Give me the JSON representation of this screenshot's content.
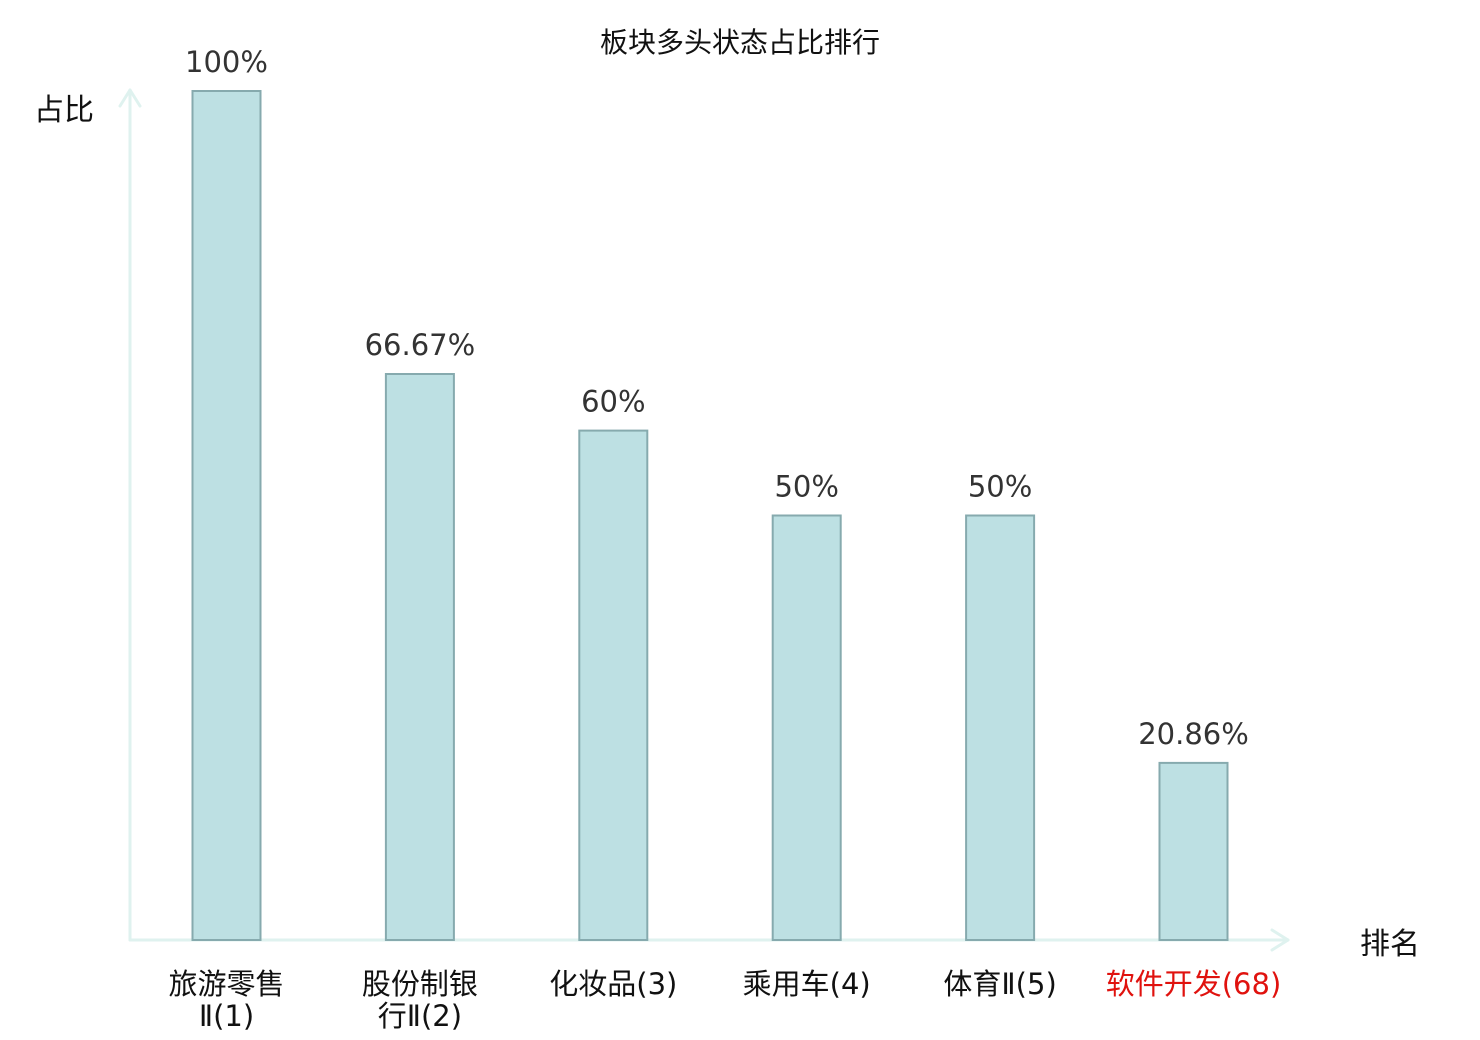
{
  "chart_data": {
    "type": "bar",
    "title": "板块多头状态占比排行",
    "xlabel": "排名",
    "ylabel": "占比",
    "ylim": [
      0,
      100
    ],
    "categories": [
      {
        "name": "旅游零售Ⅱ",
        "rank": "(1)",
        "line1": "旅游零售",
        "line2": "Ⅱ(1)",
        "highlight": false
      },
      {
        "name": "股份制银行Ⅱ",
        "rank": "(2)",
        "line1": "股份制银",
        "line2": "行Ⅱ(2)",
        "highlight": false
      },
      {
        "name": "化妆品",
        "rank": "(3)",
        "line1": "化妆品(3)",
        "line2": "",
        "highlight": false
      },
      {
        "name": "乘用车",
        "rank": "(4)",
        "line1": "乘用车(4)",
        "line2": "",
        "highlight": false
      },
      {
        "name": "体育Ⅱ",
        "rank": "(5)",
        "line1": "体育Ⅱ(5)",
        "line2": "",
        "highlight": false
      },
      {
        "name": "软件开发",
        "rank": "(68)",
        "line1": "软件开发(68)",
        "line2": "",
        "highlight": true
      }
    ],
    "values": [
      100,
      66.67,
      60,
      50,
      50,
      20.86
    ],
    "value_labels": [
      "100%",
      "66.67%",
      "60%",
      "50%",
      "50%",
      "20.86%"
    ],
    "grid": false,
    "legend": "none"
  },
  "colors": {
    "bar_fill": "#bde0e3",
    "bar_stroke": "#86aaae",
    "axis": "#dff2ef",
    "text": "#111111",
    "value_text": "#333333",
    "highlight": "#e0120e"
  }
}
